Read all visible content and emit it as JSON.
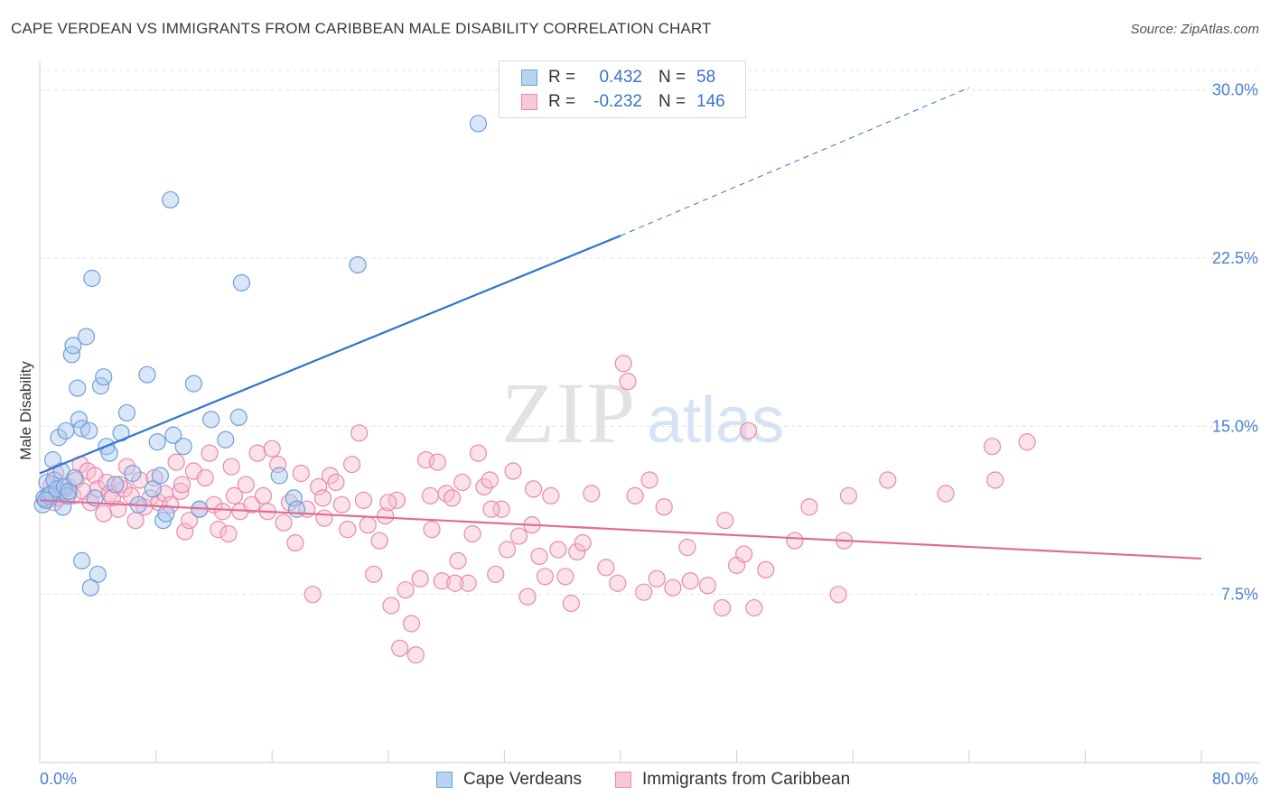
{
  "header": {
    "title": "CAPE VERDEAN VS IMMIGRANTS FROM CARIBBEAN MALE DISABILITY CORRELATION CHART",
    "source": "Source: ZipAtlas.com"
  },
  "watermark": {
    "zip": "ZIP",
    "atlas": "atlas"
  },
  "legend": {
    "rows": [
      {
        "r_label": "R =",
        "r_value": "0.432",
        "n_label": "N =",
        "n_value": "58"
      },
      {
        "r_label": "R =",
        "r_value": "-0.232",
        "n_label": "N =",
        "n_value": "146"
      }
    ]
  },
  "bottom_legend": {
    "series1": "Cape Verdeans",
    "series2": "Immigrants from Caribbean"
  },
  "colors": {
    "series1_fill": "#a9c8ee",
    "series1_stroke": "#6e9fd9",
    "series1_line": "#2e74cf",
    "series2_fill": "#f6bdd0",
    "series2_stroke": "#e98aaa",
    "series2_line": "#e26b95",
    "tick_label": "#4a7fd0",
    "grid": "#e3e3e3"
  },
  "chart_data": {
    "type": "scatter",
    "title": "CAPE VERDEAN VS IMMIGRANTS FROM CARIBBEAN MALE DISABILITY CORRELATION CHART",
    "xlabel": "",
    "ylabel": "Male Disability",
    "xlim": [
      0,
      80
    ],
    "ylim": [
      0,
      32
    ],
    "x_tick_labels": [
      "0.0%",
      "80.0%"
    ],
    "y_ticks": [
      7.5,
      15.0,
      22.5,
      30.0
    ],
    "y_tick_labels": [
      "7.5%",
      "15.0%",
      "22.5%",
      "30.0%"
    ],
    "grid": true,
    "legend_position": "top-center",
    "series": [
      {
        "name": "Cape Verdeans",
        "r": 0.432,
        "n": 58,
        "trend": {
          "x0": 0,
          "y0": 12.9,
          "x1": 40,
          "y1": 23.5,
          "dashed_to_x": 64,
          "dashed_to_y": 30.1
        },
        "points": [
          [
            0.2,
            11.5
          ],
          [
            0.3,
            11.8
          ],
          [
            0.5,
            12.5
          ],
          [
            0.6,
            11.9
          ],
          [
            0.8,
            12.0
          ],
          [
            0.9,
            13.5
          ],
          [
            1.0,
            12.6
          ],
          [
            1.2,
            12.2
          ],
          [
            1.3,
            14.5
          ],
          [
            1.5,
            13.0
          ],
          [
            1.6,
            11.4
          ],
          [
            1.7,
            12.3
          ],
          [
            1.8,
            14.8
          ],
          [
            1.9,
            11.9
          ],
          [
            2.0,
            12.1
          ],
          [
            2.2,
            18.2
          ],
          [
            2.3,
            18.6
          ],
          [
            2.4,
            12.7
          ],
          [
            2.6,
            16.7
          ],
          [
            2.7,
            15.3
          ],
          [
            2.9,
            14.9
          ],
          [
            3.2,
            19.0
          ],
          [
            3.4,
            14.8
          ],
          [
            3.6,
            21.6
          ],
          [
            3.8,
            11.8
          ],
          [
            4.0,
            8.4
          ],
          [
            4.2,
            16.8
          ],
          [
            4.4,
            17.2
          ],
          [
            4.6,
            14.1
          ],
          [
            4.8,
            13.8
          ],
          [
            5.2,
            12.4
          ],
          [
            5.6,
            14.7
          ],
          [
            6.0,
            15.6
          ],
          [
            6.4,
            12.9
          ],
          [
            6.8,
            11.5
          ],
          [
            7.4,
            17.3
          ],
          [
            7.8,
            12.2
          ],
          [
            8.1,
            14.3
          ],
          [
            8.3,
            12.8
          ],
          [
            8.5,
            10.8
          ],
          [
            8.7,
            11.1
          ],
          [
            9.0,
            25.1
          ],
          [
            9.2,
            14.6
          ],
          [
            9.9,
            14.1
          ],
          [
            10.6,
            16.9
          ],
          [
            11.0,
            11.3
          ],
          [
            11.8,
            15.3
          ],
          [
            12.8,
            14.4
          ],
          [
            13.7,
            15.4
          ],
          [
            13.9,
            21.4
          ],
          [
            16.5,
            12.8
          ],
          [
            17.5,
            11.8
          ],
          [
            17.7,
            11.3
          ],
          [
            21.9,
            22.2
          ],
          [
            30.2,
            28.5
          ],
          [
            0.4,
            11.7
          ],
          [
            2.9,
            9.0
          ],
          [
            3.5,
            7.8
          ]
        ]
      },
      {
        "name": "Immigrants from Caribbean",
        "r": -0.232,
        "n": 146,
        "trend": {
          "x0": 0,
          "y0": 11.7,
          "x1": 80,
          "y1": 9.1
        },
        "points": [
          [
            0.5,
            11.7
          ],
          [
            0.8,
            12.4
          ],
          [
            1.0,
            11.6
          ],
          [
            1.1,
            12.9
          ],
          [
            1.3,
            11.8
          ],
          [
            1.6,
            12.1
          ],
          [
            2.0,
            12.3
          ],
          [
            2.3,
            11.9
          ],
          [
            2.5,
            12.6
          ],
          [
            2.8,
            13.3
          ],
          [
            3.0,
            12.1
          ],
          [
            3.3,
            13.0
          ],
          [
            3.5,
            11.6
          ],
          [
            3.8,
            12.8
          ],
          [
            4.0,
            12.2
          ],
          [
            4.4,
            11.1
          ],
          [
            4.6,
            12.5
          ],
          [
            4.8,
            12.0
          ],
          [
            5.0,
            11.8
          ],
          [
            5.4,
            11.3
          ],
          [
            5.8,
            12.2
          ],
          [
            6.0,
            13.2
          ],
          [
            6.3,
            11.9
          ],
          [
            6.6,
            10.8
          ],
          [
            6.9,
            12.6
          ],
          [
            7.2,
            11.4
          ],
          [
            7.6,
            11.8
          ],
          [
            7.9,
            12.7
          ],
          [
            8.2,
            11.6
          ],
          [
            8.6,
            12.0
          ],
          [
            9.0,
            11.5
          ],
          [
            9.4,
            13.4
          ],
          [
            9.7,
            12.1
          ],
          [
            10.0,
            10.3
          ],
          [
            10.3,
            10.8
          ],
          [
            10.6,
            13.0
          ],
          [
            11.0,
            11.3
          ],
          [
            11.4,
            12.7
          ],
          [
            11.7,
            13.8
          ],
          [
            12.0,
            11.5
          ],
          [
            12.3,
            10.4
          ],
          [
            12.6,
            11.2
          ],
          [
            13.0,
            10.2
          ],
          [
            13.4,
            11.9
          ],
          [
            13.8,
            11.2
          ],
          [
            14.2,
            12.4
          ],
          [
            14.6,
            11.5
          ],
          [
            15.0,
            13.8
          ],
          [
            15.4,
            11.9
          ],
          [
            15.7,
            11.2
          ],
          [
            16.0,
            14.0
          ],
          [
            16.4,
            13.3
          ],
          [
            16.8,
            10.7
          ],
          [
            17.2,
            11.6
          ],
          [
            17.6,
            9.8
          ],
          [
            18.0,
            12.9
          ],
          [
            18.4,
            11.3
          ],
          [
            18.8,
            7.5
          ],
          [
            19.2,
            12.3
          ],
          [
            19.6,
            10.9
          ],
          [
            20.0,
            12.8
          ],
          [
            20.4,
            12.5
          ],
          [
            20.8,
            11.5
          ],
          [
            21.2,
            10.4
          ],
          [
            21.5,
            13.3
          ],
          [
            22.0,
            14.7
          ],
          [
            22.3,
            11.7
          ],
          [
            22.6,
            10.6
          ],
          [
            23.0,
            8.4
          ],
          [
            23.4,
            9.9
          ],
          [
            23.8,
            11.0
          ],
          [
            24.2,
            7.0
          ],
          [
            24.6,
            11.7
          ],
          [
            24.8,
            5.1
          ],
          [
            25.2,
            7.7
          ],
          [
            25.6,
            6.2
          ],
          [
            25.9,
            4.8
          ],
          [
            26.2,
            8.2
          ],
          [
            26.6,
            13.5
          ],
          [
            27.0,
            10.4
          ],
          [
            27.4,
            13.4
          ],
          [
            27.7,
            8.1
          ],
          [
            28.0,
            12.0
          ],
          [
            28.4,
            11.8
          ],
          [
            28.8,
            9.0
          ],
          [
            29.1,
            12.5
          ],
          [
            29.5,
            8.0
          ],
          [
            29.8,
            10.2
          ],
          [
            30.2,
            13.8
          ],
          [
            30.6,
            12.3
          ],
          [
            31.0,
            12.6
          ],
          [
            31.4,
            8.4
          ],
          [
            31.8,
            11.3
          ],
          [
            32.2,
            9.5
          ],
          [
            32.6,
            13.0
          ],
          [
            33.0,
            10.1
          ],
          [
            33.6,
            7.4
          ],
          [
            34.0,
            12.2
          ],
          [
            34.4,
            9.2
          ],
          [
            34.8,
            8.3
          ],
          [
            35.2,
            11.9
          ],
          [
            35.7,
            9.5
          ],
          [
            36.2,
            8.3
          ],
          [
            36.6,
            7.1
          ],
          [
            37.0,
            9.4
          ],
          [
            37.4,
            9.8
          ],
          [
            38.0,
            12.0
          ],
          [
            39.0,
            8.7
          ],
          [
            39.8,
            8.0
          ],
          [
            40.2,
            17.8
          ],
          [
            40.5,
            17.0
          ],
          [
            41.0,
            11.9
          ],
          [
            41.6,
            7.6
          ],
          [
            42.0,
            12.6
          ],
          [
            42.5,
            8.2
          ],
          [
            43.0,
            11.4
          ],
          [
            43.6,
            7.8
          ],
          [
            44.6,
            9.6
          ],
          [
            44.8,
            8.1
          ],
          [
            46.0,
            7.9
          ],
          [
            47.0,
            6.9
          ],
          [
            47.2,
            10.8
          ],
          [
            48.0,
            8.8
          ],
          [
            48.5,
            9.3
          ],
          [
            48.8,
            14.8
          ],
          [
            49.2,
            6.9
          ],
          [
            50.0,
            8.6
          ],
          [
            52.0,
            9.9
          ],
          [
            53.0,
            11.4
          ],
          [
            55.0,
            7.5
          ],
          [
            55.4,
            9.9
          ],
          [
            55.7,
            11.9
          ],
          [
            58.4,
            12.6
          ],
          [
            62.4,
            12.0
          ],
          [
            65.6,
            14.1
          ],
          [
            65.8,
            12.6
          ],
          [
            68.0,
            14.3
          ],
          [
            5.5,
            12.4
          ],
          [
            9.8,
            12.4
          ],
          [
            13.2,
            13.2
          ],
          [
            19.5,
            11.8
          ],
          [
            24.0,
            11.6
          ],
          [
            26.9,
            11.9
          ],
          [
            28.6,
            8.0
          ],
          [
            31.1,
            11.3
          ],
          [
            33.9,
            10.6
          ]
        ]
      }
    ]
  }
}
